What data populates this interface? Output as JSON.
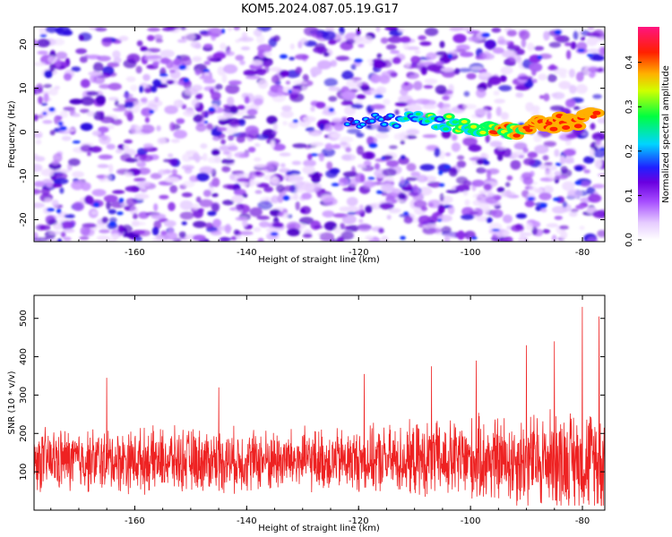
{
  "title": "KOM5.2024.087.05.19.G17",
  "chart_data": [
    {
      "type": "heatmap",
      "xlabel": "Height of straight line (km)",
      "ylabel": "Frequency (Hz)",
      "xlim": [
        -178,
        -76
      ],
      "ylim": [
        -25,
        24
      ],
      "x_ticks": [
        -160,
        -140,
        -120,
        -100,
        -80
      ],
      "y_ticks": [
        -20,
        -10,
        0,
        10,
        20
      ],
      "colorbar": {
        "label": "Normalized spectral amplitude",
        "range": [
          0,
          0.48
        ],
        "ticks": [
          0.0,
          0.1,
          0.2,
          0.3,
          0.4
        ],
        "colors": [
          "#ffffff",
          "#d9b3ff",
          "#8a2be2",
          "#5a00d0",
          "#0000ff",
          "#00e5ff",
          "#00ff00",
          "#ffff00",
          "#ff8c00",
          "#ff0000",
          "#ff1493"
        ]
      },
      "signal_track": {
        "description_points": [
          {
            "x": -122,
            "y": 2
          },
          {
            "x": -110,
            "y": 3
          },
          {
            "x": -100,
            "y": 1.5
          },
          {
            "x": -95,
            "y": 0
          },
          {
            "x": -90,
            "y": 1
          },
          {
            "x": -85,
            "y": 2
          },
          {
            "x": -80,
            "y": 3
          },
          {
            "x": -77,
            "y": 4
          }
        ],
        "peak_amplitude": 0.45
      },
      "grid": false
    },
    {
      "type": "line",
      "xlabel": "Height of straight line (km)",
      "ylabel": "SNR (10 * v/v)",
      "xlim": [
        -178,
        -76
      ],
      "ylim": [
        0,
        560
      ],
      "x_ticks": [
        -160,
        -140,
        -120,
        -100,
        -80
      ],
      "y_ticks": [
        100,
        200,
        300,
        400,
        500
      ],
      "series": [
        {
          "color": "#ee2222",
          "baseline_mean": 130,
          "noise_range": [
            40,
            260
          ],
          "peaks": [
            {
              "x": -165,
              "y": 345
            },
            {
              "x": -145,
              "y": 320
            },
            {
              "x": -119,
              "y": 355
            },
            {
              "x": -107,
              "y": 375
            },
            {
              "x": -99,
              "y": 390
            },
            {
              "x": -90,
              "y": 430
            },
            {
              "x": -85,
              "y": 440
            },
            {
              "x": -80,
              "y": 530
            },
            {
              "x": -77,
              "y": 505
            }
          ]
        }
      ],
      "grid": false
    }
  ]
}
